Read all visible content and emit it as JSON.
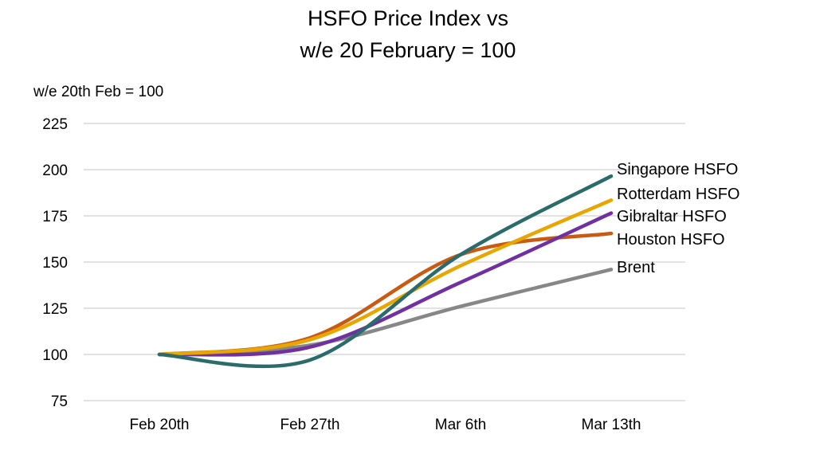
{
  "chart_data": {
    "type": "line",
    "title": [
      "HSFO Price Index vs",
      "w/e 20 February = 100"
    ],
    "ylabel": "w/e 20th Feb = 100",
    "xlabel": "",
    "categories": [
      "Feb 20th",
      "Feb 27th",
      "Mar 6th",
      "Mar 13th"
    ],
    "ylim": [
      75,
      225
    ],
    "yticks": [
      75,
      100,
      125,
      150,
      175,
      200,
      225
    ],
    "grid": true,
    "legend": "direct labels at line ends (right)",
    "series": [
      {
        "name": "Singapore HSFO",
        "color": "#2b6b6b",
        "values": [
          100,
          97,
          154,
          196.5
        ]
      },
      {
        "name": "Rotterdam HSFO",
        "color": "#e8a600",
        "values": [
          100,
          108,
          148,
          183.5
        ]
      },
      {
        "name": "Gibraltar HSFO",
        "color": "#7030a0",
        "values": [
          100,
          104,
          139,
          176.5
        ]
      },
      {
        "name": "Houston HSFO",
        "color": "#c85a12",
        "values": [
          100,
          109,
          154,
          165.5
        ]
      },
      {
        "name": "Brent",
        "color": "#878787",
        "values": [
          100,
          105,
          126,
          146
        ]
      }
    ]
  }
}
